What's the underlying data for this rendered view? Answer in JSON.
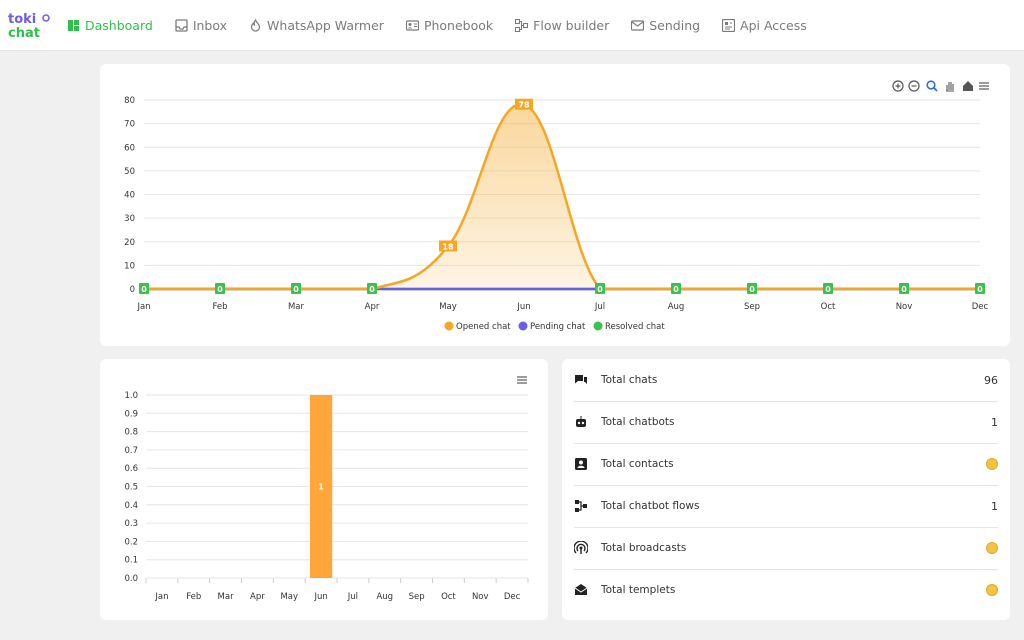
{
  "app": {
    "logo_text": "toki chat"
  },
  "nav": [
    {
      "label": "Dashboard",
      "icon": "dashboard-icon",
      "active": true
    },
    {
      "label": "Inbox",
      "icon": "inbox-icon"
    },
    {
      "label": "WhatsApp Warmer",
      "icon": "fire-icon"
    },
    {
      "label": "Phonebook",
      "icon": "contact-card-icon"
    },
    {
      "label": "Flow builder",
      "icon": "flow-icon"
    },
    {
      "label": "Sending",
      "icon": "mail-icon"
    },
    {
      "label": "Api Access",
      "icon": "api-icon"
    }
  ],
  "colors": {
    "accent": "#2fbf4a",
    "opened": "#f5a623",
    "pending": "#6c5ce7",
    "resolved": "#3ac24a",
    "bar": "#ffa63a"
  },
  "chart_data": [
    {
      "type": "area",
      "categories": [
        "Jan",
        "Feb",
        "Mar",
        "Apr",
        "May",
        "Jun",
        "Jul",
        "Aug",
        "Sep",
        "Oct",
        "Nov",
        "Dec"
      ],
      "series": [
        {
          "name": "Opened chat",
          "values": [
            0,
            0,
            0,
            0,
            18,
            78,
            0,
            0,
            0,
            0,
            0,
            0
          ]
        },
        {
          "name": "Pending chat",
          "values": [
            0,
            0,
            0,
            0,
            0,
            0,
            0,
            0,
            0,
            0,
            0,
            0
          ]
        },
        {
          "name": "Resolved chat",
          "values": [
            0,
            0,
            0,
            0,
            0,
            0,
            0,
            0,
            0,
            0,
            0,
            0
          ]
        }
      ],
      "yticks": [
        "80",
        "70",
        "60",
        "50",
        "40",
        "30",
        "20",
        "10",
        "0"
      ],
      "ylim": [
        0,
        80
      ],
      "legend": "bottom",
      "grid": true
    },
    {
      "type": "bar",
      "categories": [
        "Jan",
        "Feb",
        "Mar",
        "Apr",
        "May",
        "Jun",
        "Jul",
        "Aug",
        "Sep",
        "Oct",
        "Nov",
        "Dec"
      ],
      "values": [
        0,
        0,
        0,
        0,
        0,
        1,
        0,
        0,
        0,
        0,
        0,
        0
      ],
      "data_labels": [
        "",
        "",
        "",
        "",
        "",
        "1",
        "",
        "",
        "",
        "",
        "",
        ""
      ],
      "yticks": [
        "1.0",
        "0.9",
        "0.8",
        "0.7",
        "0.6",
        "0.5",
        "0.4",
        "0.3",
        "0.2",
        "0.1",
        "0.0"
      ],
      "ylim": [
        0,
        1
      ],
      "grid": true
    }
  ],
  "stats": [
    {
      "label": "Total chats",
      "value": "96",
      "icon": "chat-icon"
    },
    {
      "label": "Total chatbots",
      "value": "1",
      "icon": "robot-icon"
    },
    {
      "label": "Total contacts",
      "value": "",
      "icon": "contact-icon",
      "emoji": true
    },
    {
      "label": "Total chatbot flows",
      "value": "1",
      "icon": "flow-icon"
    },
    {
      "label": "Total broadcasts",
      "value": "",
      "icon": "broadcast-icon",
      "emoji": true
    },
    {
      "label": "Total templets",
      "value": "",
      "icon": "template-icon",
      "emoji": true
    }
  ]
}
